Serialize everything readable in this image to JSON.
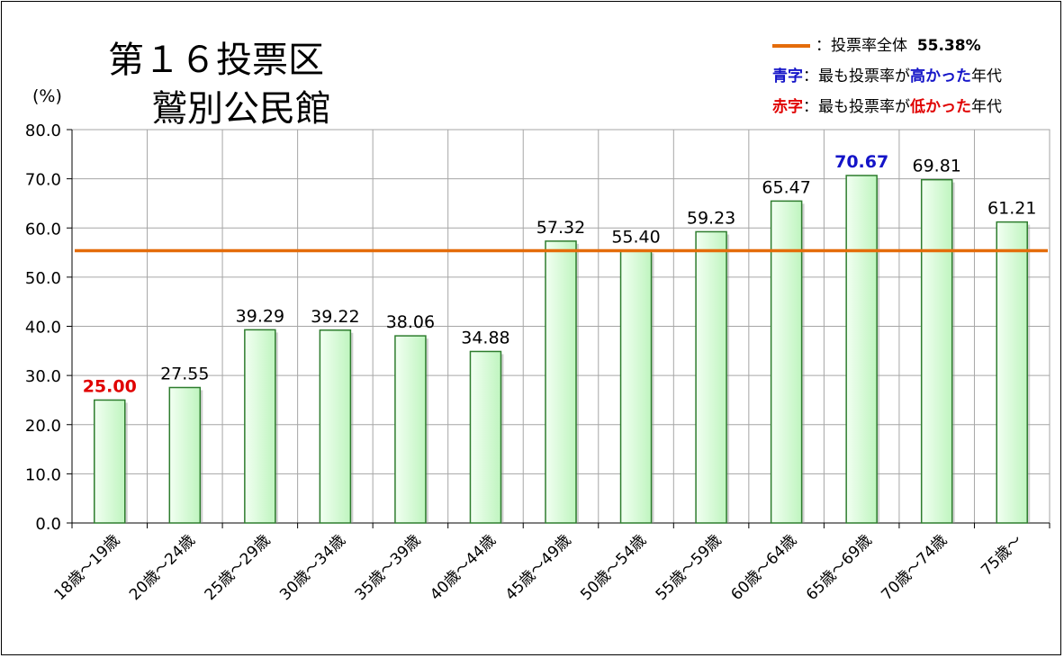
{
  "title": {
    "line1": "第１６投票区",
    "line2": "鷲別公民館"
  },
  "legend": {
    "overall_label": "：投票率全体",
    "overall_value": "55.38%",
    "high_key": "青字",
    "high_text_1": "：最も投票率が",
    "high_emph": "高かった",
    "high_text_2": "年代",
    "low_key": "赤字",
    "low_text_1": "：最も投票率が",
    "low_emph": "低かった",
    "low_text_2": "年代"
  },
  "colors": {
    "bar_fill_top": "#F2FFF2",
    "bar_fill_bottom": "#BFF5BF",
    "bar_stroke": "#2E7D2E",
    "overall_line": "#E46C0A",
    "high": "#1414C8",
    "low": "#E00000",
    "grid": "#A6A6A6"
  },
  "chart_data": {
    "type": "bar",
    "title": "第１６投票区 鷲別公民館",
    "ylabel": "(%)",
    "xlabel": "",
    "ylim": [
      0,
      80
    ],
    "yticks": [
      "0.0",
      "10.0",
      "20.0",
      "30.0",
      "40.0",
      "50.0",
      "60.0",
      "70.0",
      "80.0"
    ],
    "grid": true,
    "legend_position": "top-right",
    "categories": [
      "18歳～19歳",
      "20歳～24歳",
      "25歳～29歳",
      "30歳～34歳",
      "35歳～39歳",
      "40歳～44歳",
      "45歳～49歳",
      "50歳～54歳",
      "55歳～59歳",
      "60歳～64歳",
      "65歳～69歳",
      "70歳～74歳",
      "75歳～"
    ],
    "values": [
      25.0,
      27.55,
      39.29,
      39.22,
      38.06,
      34.88,
      57.32,
      55.4,
      59.23,
      65.47,
      70.67,
      69.81,
      61.21
    ],
    "labels": [
      "25.00",
      "27.55",
      "39.29",
      "39.22",
      "38.06",
      "34.88",
      "57.32",
      "55.40",
      "59.23",
      "65.47",
      "70.67",
      "69.81",
      "61.21"
    ],
    "overall_rate": 55.38,
    "highest_index": 10,
    "lowest_index": 0
  }
}
